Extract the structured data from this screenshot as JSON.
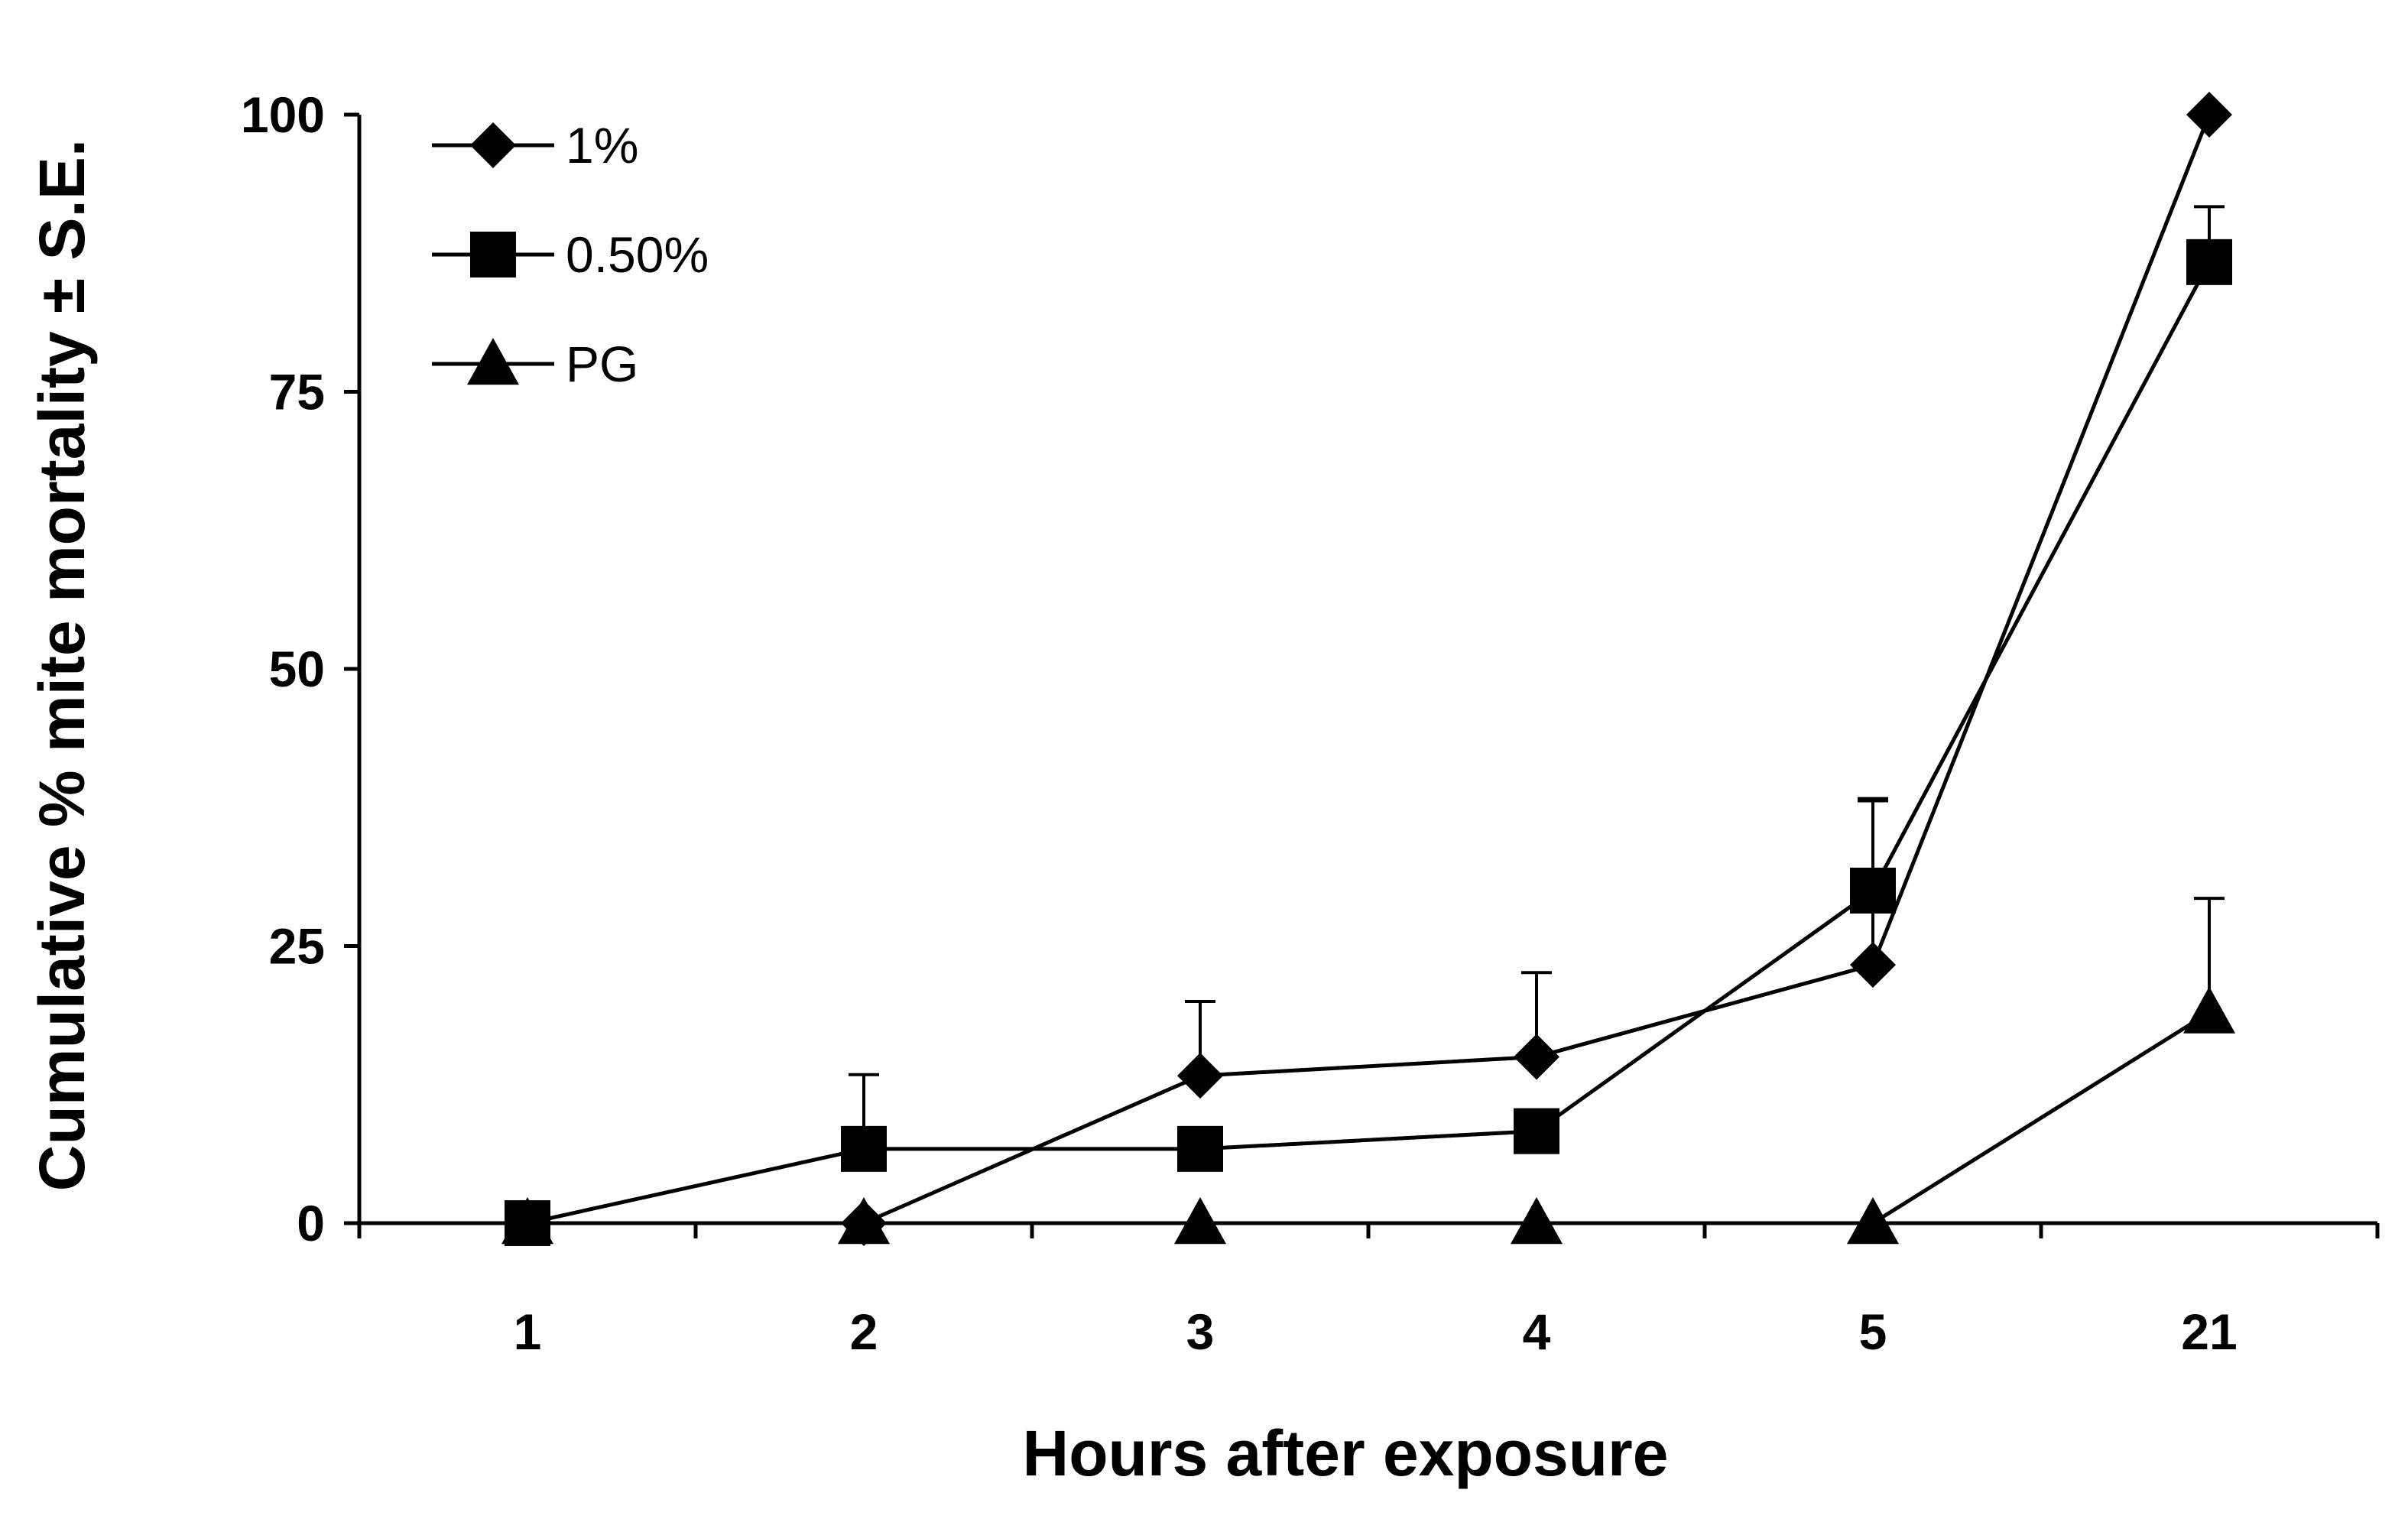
{
  "chart_data": {
    "type": "line",
    "xlabel": "Hours after exposure",
    "ylabel": "Cumulative % mite mortality ± S.E.",
    "categories": [
      "1",
      "2",
      "3",
      "4",
      "5",
      "21"
    ],
    "ylim": [
      0,
      100
    ],
    "yticks": [
      "0",
      "25",
      "50",
      "75",
      "100"
    ],
    "grid": false,
    "legend_position": "top-left",
    "series": [
      {
        "name": "1%",
        "marker": "diamond",
        "values": [
          0,
          0,
          13.3,
          15,
          23.3,
          100
        ],
        "errors": [
          0,
          0,
          6.7,
          7.6,
          15,
          0
        ]
      },
      {
        "name": "0.50%",
        "marker": "square",
        "values": [
          0,
          6.7,
          6.7,
          8.3,
          30,
          86.7
        ],
        "errors": [
          0,
          6.7,
          0,
          0,
          8.1,
          5
        ]
      },
      {
        "name": "PG",
        "marker": "triangle",
        "values": [
          0,
          0,
          0,
          0,
          0,
          19
        ],
        "errors": [
          0,
          0,
          0,
          0,
          0,
          10.3
        ]
      }
    ]
  }
}
